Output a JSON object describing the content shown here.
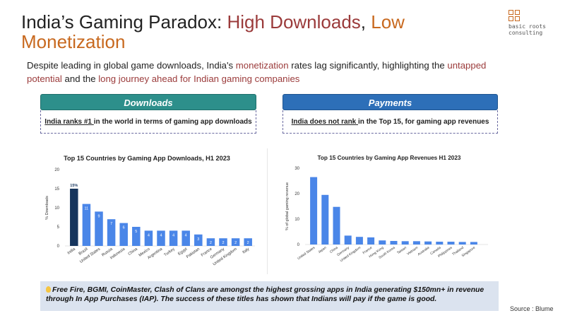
{
  "header": {
    "title_part1": "India’s Gaming Paradox: ",
    "title_part2": "High Downloads",
    "title_part3": ", ",
    "title_part4": "Low Monetization"
  },
  "logo": {
    "line1": "basic roots",
    "line2": "consulting"
  },
  "subtitle": {
    "part1": "Despite leading in global game downloads, India's ",
    "part2": "monetization",
    "part3": " rates lag significantly, highlighting the ",
    "part4": "untapped potential",
    "part5": " and the ",
    "part6": "long journey ahead for Indian gaming companies"
  },
  "downloads_panel": {
    "label": "Downloads",
    "text_underlined": "India ranks #1 ",
    "text_rest": "in the world in terms of gaming app downloads"
  },
  "payments_panel": {
    "label": "Payments",
    "text_underlined": "India does not rank ",
    "text_rest": "in the Top 15, for gaming app revenues"
  },
  "note": {
    "text": "Free Fire, BGMI, CoinMaster, Clash of Clans are amongst the highest grossing apps in India generating $150mn+ in revenue through In App Purchases (IAP). The success of these titles has shown that Indians will pay if the game is good."
  },
  "source": "Source : Blume",
  "colors": {
    "bar": "#4a86e8",
    "highlight_bar": "#16355d",
    "green": "#2d8f8b",
    "blue": "#2d6fb8",
    "note_bg": "#dbe3ef"
  },
  "chart_data": [
    {
      "type": "bar",
      "title": "Top 15 Countries by Gaming App Downloads, H1 2023",
      "xlabel": "",
      "ylabel": "% Downloads",
      "ylim": [
        0,
        20
      ],
      "yticks": [
        0,
        5,
        10,
        15,
        20
      ],
      "grid": false,
      "categories": [
        "India",
        "Brazil",
        "United States",
        "Russia",
        "Indonesia",
        "China",
        "Mexico",
        "Argentina",
        "Turkey",
        "Egypt",
        "Pakistan",
        "France",
        "Germany",
        "United Kingdom",
        "Italy"
      ],
      "values": [
        15,
        11,
        9,
        7,
        6,
        5,
        4,
        4,
        4,
        4,
        3,
        2,
        2,
        2,
        2
      ],
      "data_labels": [
        "15%",
        "11",
        "9",
        "7",
        "6",
        "5",
        "4",
        "4",
        "4",
        "4",
        "3",
        "2",
        "2",
        "2",
        "2"
      ],
      "highlight_index": 0
    },
    {
      "type": "bar",
      "title": "Top 15 Countries by Gaming App Revenues H1 2023",
      "xlabel": "",
      "ylabel": "% of global gaming revenue",
      "ylim": [
        0,
        30
      ],
      "yticks": [
        0,
        10,
        20,
        30
      ],
      "grid": false,
      "categories": [
        "United States",
        "Japan",
        "China",
        "Germany",
        "United Kingdom",
        "France",
        "Hong Kong",
        "South Korea",
        "Taiwan",
        "Vietnam",
        "Australia",
        "Canada",
        "Philippines",
        "Thailand",
        "Singapore"
      ],
      "values": [
        26.5,
        19.5,
        14.8,
        3.5,
        3.0,
        2.8,
        1.6,
        1.4,
        1.3,
        1.3,
        1.2,
        1.1,
        1.1,
        1.0,
        1.0
      ]
    }
  ]
}
